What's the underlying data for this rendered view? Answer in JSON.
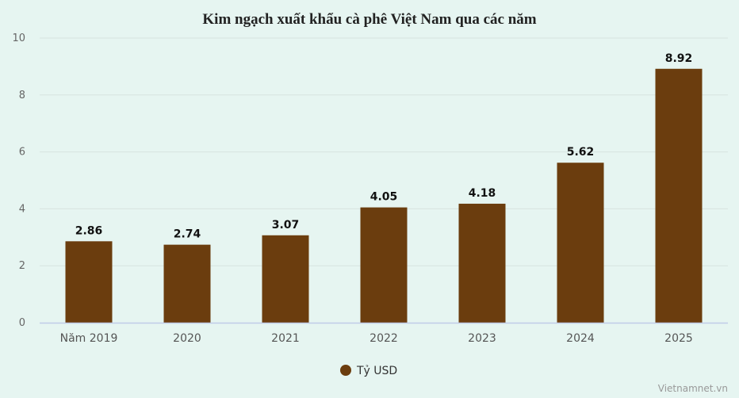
{
  "chart_data": {
    "type": "bar",
    "title": "Kim ngạch xuất khẩu cà phê Việt Nam qua các năm",
    "categories": [
      "Năm 2019",
      "2020",
      "2021",
      "2022",
      "2023",
      "2024",
      "2025"
    ],
    "series": [
      {
        "name": "Tỷ USD",
        "values": [
          2.86,
          2.74,
          3.07,
          4.05,
          4.18,
          5.62,
          8.92
        ],
        "color": "#6b3d0e"
      }
    ],
    "data_labels": [
      "2.86",
      "2.74",
      "3.07",
      "4.05",
      "4.18",
      "5.62",
      "8.92"
    ],
    "ylim": [
      0,
      10
    ],
    "yticks": [
      "0",
      "2",
      "4",
      "6",
      "8",
      "10"
    ],
    "grid": true,
    "legend_position": "bottom"
  },
  "credit": "Vietnamnet.vn",
  "colors": {
    "background": "#e6f5f1",
    "grid": "#d7e3e0",
    "axis": "#c0cce8",
    "bar": "#6b3d0e"
  }
}
